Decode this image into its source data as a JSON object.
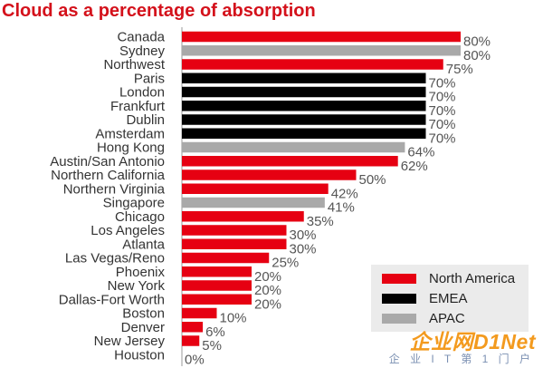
{
  "title": "Cloud as a percentage of absorption",
  "chart_data": {
    "type": "bar",
    "orientation": "horizontal",
    "title": "Cloud as a percentage of absorption",
    "value_suffix": "%",
    "xlim": [
      0,
      80
    ],
    "grid": false,
    "legend_position": "bottom-right",
    "colors": {
      "North America": "#e60012",
      "EMEA": "#000000",
      "APAC": "#a9a9a9"
    },
    "legend": [
      "North America",
      "EMEA",
      "APAC"
    ],
    "categories": [
      "Canada",
      "Sydney",
      "Northwest",
      "Paris",
      "London",
      "Frankfurt",
      "Dublin",
      "Amsterdam",
      "Hong Kong",
      "Austin/San Antonio",
      "Northern California",
      "Northern Virginia",
      "Singapore",
      "Chicago",
      "Los Angeles",
      "Atlanta",
      "Las Vegas/Reno",
      "Phoenix",
      "New York",
      "Dallas-Fort Worth",
      "Boston",
      "Denver",
      "New Jersey",
      "Houston"
    ],
    "values": [
      80,
      80,
      75,
      70,
      70,
      70,
      70,
      70,
      64,
      62,
      50,
      42,
      41,
      35,
      30,
      30,
      25,
      20,
      20,
      20,
      10,
      6,
      5,
      0
    ],
    "regions": [
      "North America",
      "APAC",
      "North America",
      "EMEA",
      "EMEA",
      "EMEA",
      "EMEA",
      "EMEA",
      "APAC",
      "North America",
      "North America",
      "North America",
      "APAC",
      "North America",
      "North America",
      "North America",
      "North America",
      "North America",
      "North America",
      "North America",
      "North America",
      "North America",
      "North America",
      "North America"
    ]
  },
  "watermark": {
    "top": "企业网D1Net",
    "bottom": "企 业 I T 第 1 门 户"
  }
}
